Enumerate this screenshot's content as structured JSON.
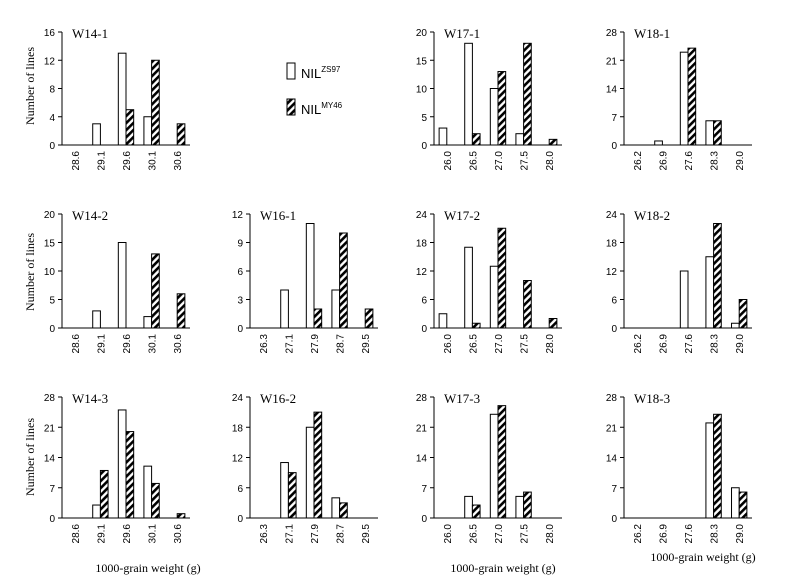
{
  "legend": {
    "series": [
      {
        "base": "NIL",
        "sup": "ZS97",
        "fill": "white"
      },
      {
        "base": "NIL",
        "sup": "MY46",
        "fill": "hatch"
      }
    ]
  },
  "ylabel": "Number of lines",
  "xlabel": "1000-grain weight (g)",
  "chart_data": [
    {
      "type": "bar",
      "title": "W14-1",
      "categories": [
        "28.6",
        "29.1",
        "29.6",
        "30.1",
        "30.6"
      ],
      "ylim": [
        0,
        16
      ],
      "yticks": [
        0,
        4,
        8,
        12,
        16
      ],
      "series": [
        {
          "name": "NILZS97",
          "values": [
            0,
            3,
            13,
            4,
            0
          ]
        },
        {
          "name": "NILMY46",
          "values": [
            0,
            0,
            5,
            12,
            3
          ]
        }
      ]
    },
    {
      "type": "bar",
      "title": "W17-1",
      "categories": [
        "26.0",
        "26.5",
        "27.0",
        "27.5",
        "28.0"
      ],
      "ylim": [
        0,
        20
      ],
      "yticks": [
        0,
        5,
        10,
        15,
        20
      ],
      "series": [
        {
          "name": "NILZS97",
          "values": [
            3,
            18,
            10,
            2,
            0
          ]
        },
        {
          "name": "NILMY46",
          "values": [
            0,
            2,
            13,
            18,
            1
          ]
        }
      ]
    },
    {
      "type": "bar",
      "title": "W18-1",
      "categories": [
        "26.2",
        "26.9",
        "27.6",
        "28.3",
        "29.0"
      ],
      "ylim": [
        0,
        28
      ],
      "yticks": [
        0,
        7,
        14,
        21,
        28
      ],
      "series": [
        {
          "name": "NILZS97",
          "values": [
            0,
            1,
            23,
            6,
            0
          ]
        },
        {
          "name": "NILMY46",
          "values": [
            0,
            0,
            24,
            6,
            0
          ]
        }
      ]
    },
    {
      "type": "bar",
      "title": "W14-2",
      "categories": [
        "28.6",
        "29.1",
        "29.6",
        "30.1",
        "30.6"
      ],
      "ylim": [
        0,
        20
      ],
      "yticks": [
        0,
        5,
        10,
        15,
        20
      ],
      "series": [
        {
          "name": "NILZS97",
          "values": [
            0,
            3,
            15,
            2,
            0
          ]
        },
        {
          "name": "NILMY46",
          "values": [
            0,
            0,
            0,
            13,
            6
          ]
        }
      ]
    },
    {
      "type": "bar",
      "title": "W16-1",
      "categories": [
        "26.3",
        "27.1",
        "27.9",
        "28.7",
        "29.5"
      ],
      "ylim": [
        0,
        12
      ],
      "yticks": [
        0,
        3,
        6,
        9,
        12
      ],
      "series": [
        {
          "name": "NILZS97",
          "values": [
            0,
            4,
            11,
            4,
            0
          ]
        },
        {
          "name": "NILMY46",
          "values": [
            0,
            0,
            2,
            10,
            2
          ]
        }
      ]
    },
    {
      "type": "bar",
      "title": "W17-2",
      "categories": [
        "26.0",
        "26.5",
        "27.0",
        "27.5",
        "28.0"
      ],
      "ylim": [
        0,
        24
      ],
      "yticks": [
        0,
        6,
        12,
        18,
        24
      ],
      "series": [
        {
          "name": "NILZS97",
          "values": [
            3,
            17,
            13,
            0,
            0
          ]
        },
        {
          "name": "NILMY46",
          "values": [
            0,
            1,
            21,
            10,
            2
          ]
        }
      ]
    },
    {
      "type": "bar",
      "title": "W18-2",
      "categories": [
        "26.2",
        "26.9",
        "27.6",
        "28.3",
        "29.0"
      ],
      "ylim": [
        0,
        24
      ],
      "yticks": [
        0,
        6,
        12,
        18,
        24
      ],
      "series": [
        {
          "name": "NILZS97",
          "values": [
            0,
            0,
            12,
            15,
            1
          ]
        },
        {
          "name": "NILMY46",
          "values": [
            0,
            0,
            0,
            22,
            6
          ]
        }
      ]
    },
    {
      "type": "bar",
      "title": "W14-3",
      "categories": [
        "28.6",
        "29.1",
        "29.6",
        "30.1",
        "30.6"
      ],
      "ylim": [
        0,
        28
      ],
      "yticks": [
        0,
        7,
        14,
        21,
        28
      ],
      "series": [
        {
          "name": "NILZS97",
          "values": [
            0,
            3,
            25,
            12,
            0
          ]
        },
        {
          "name": "NILMY46",
          "values": [
            0,
            11,
            20,
            8,
            1
          ]
        }
      ]
    },
    {
      "type": "bar",
      "title": "W16-2",
      "categories": [
        "26.3",
        "27.1",
        "27.9",
        "28.7",
        "29.5"
      ],
      "ylim": [
        0,
        24
      ],
      "yticks": [
        0,
        6,
        12,
        18,
        24
      ],
      "series": [
        {
          "name": "NILZS97",
          "values": [
            0,
            11,
            18,
            4,
            0
          ]
        },
        {
          "name": "NILMY46",
          "values": [
            0,
            9,
            21,
            3,
            0
          ]
        }
      ]
    },
    {
      "type": "bar",
      "title": "W17-3",
      "categories": [
        "26.0",
        "26.5",
        "27.0",
        "27.5",
        "28.0"
      ],
      "ylim": [
        0,
        28
      ],
      "yticks": [
        0,
        7,
        14,
        21,
        28
      ],
      "series": [
        {
          "name": "NILZS97",
          "values": [
            0,
            5,
            24,
            5,
            0
          ]
        },
        {
          "name": "NILMY46",
          "values": [
            0,
            3,
            26,
            6,
            0
          ]
        }
      ]
    },
    {
      "type": "bar",
      "title": "W18-3",
      "categories": [
        "26.2",
        "26.9",
        "27.6",
        "28.3",
        "29.0"
      ],
      "ylim": [
        0,
        28
      ],
      "yticks": [
        0,
        7,
        14,
        21,
        28
      ],
      "series": [
        {
          "name": "NILZS97",
          "values": [
            0,
            0,
            0,
            22,
            7
          ]
        },
        {
          "name": "NILMY46",
          "values": [
            0,
            0,
            0,
            24,
            6
          ]
        }
      ]
    }
  ]
}
